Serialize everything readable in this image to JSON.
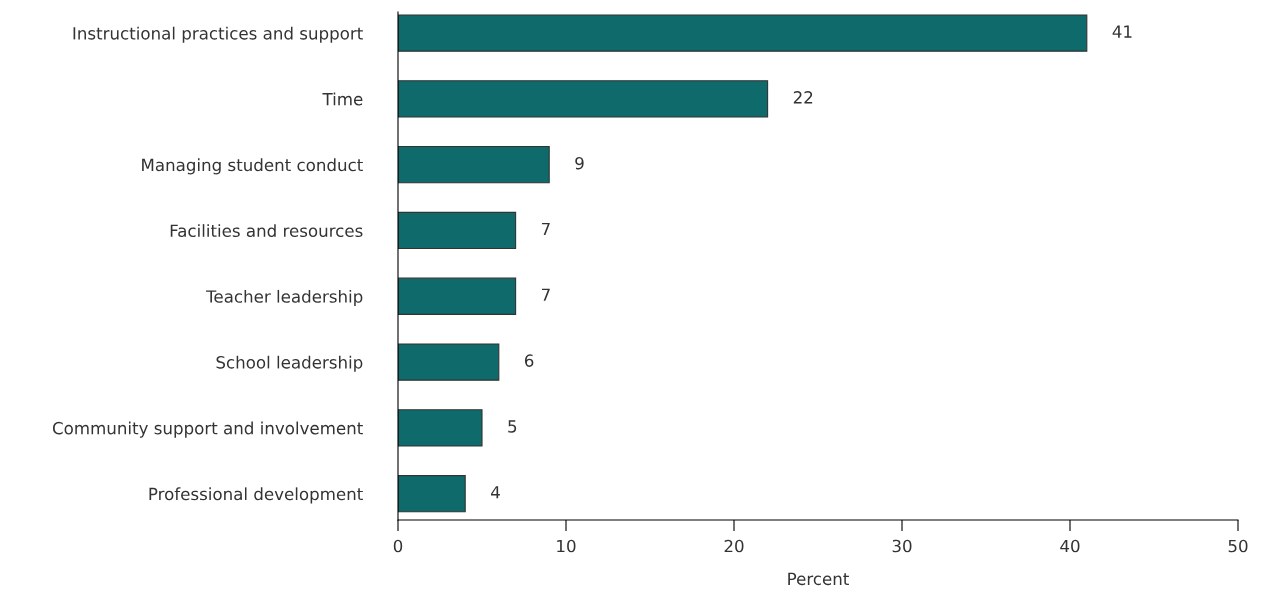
{
  "chart_data": {
    "type": "bar",
    "orientation": "horizontal",
    "categories": [
      "Instructional practices and support",
      "Time",
      "Managing student conduct",
      "Facilities and resources",
      "Teacher leadership",
      "School leadership",
      "Community support and involvement",
      "Professional development"
    ],
    "values": [
      41,
      22,
      9,
      7,
      7,
      6,
      5,
      4
    ],
    "color": "#0f6b6b",
    "xlabel": "Percent",
    "xlim": [
      0,
      50
    ],
    "xticks": [
      0,
      10,
      20,
      30,
      40,
      50
    ],
    "data_labels": true,
    "grid": false,
    "legend": false
  }
}
